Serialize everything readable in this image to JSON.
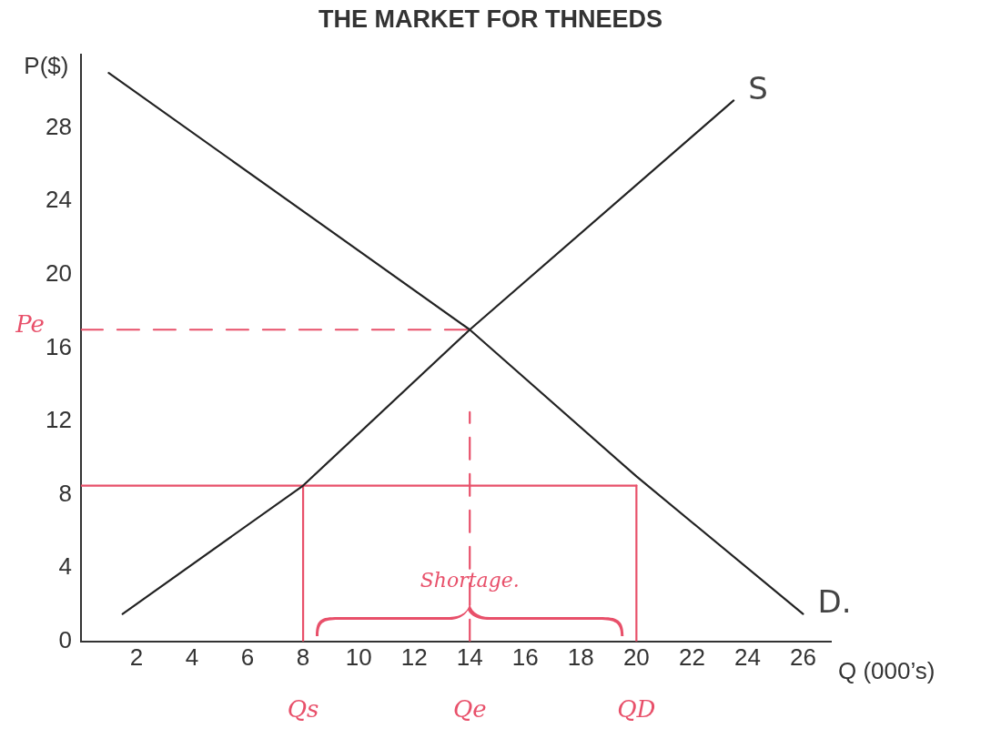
{
  "chart_data": {
    "type": "line",
    "title": "THE MARKET FOR THNEEDS",
    "xlabel": "Q (000’s)",
    "ylabel": "P($)",
    "xlim": [
      0,
      27
    ],
    "xticks": [
      2,
      4,
      6,
      8,
      10,
      12,
      14,
      16,
      18,
      20,
      22,
      24,
      26
    ],
    "ylim": [
      0,
      32
    ],
    "yticks": [
      0,
      4,
      8,
      12,
      16,
      20,
      24,
      28
    ],
    "grid": false,
    "legend": false,
    "marker": "none",
    "series": [
      {
        "name": "S",
        "color": "#222222",
        "x": [
          1.5,
          8,
          14,
          23.5
        ],
        "values": [
          1.5,
          8.5,
          17,
          29.5
        ]
      },
      {
        "name": "D.",
        "color": "#222222",
        "x": [
          1,
          14,
          20,
          26
        ],
        "values": [
          31,
          17,
          9,
          1.5
        ]
      },
      {
        "color": "#e8506a",
        "x": [
          0,
          20
        ],
        "values": [
          8.5,
          8.5
        ]
      },
      {
        "name": "Qs",
        "color": "#e8506a",
        "x": [
          8,
          8
        ],
        "values": [
          0,
          8.5
        ]
      },
      {
        "name": "QD",
        "color": "#e8506a",
        "x": [
          20,
          20
        ],
        "values": [
          0,
          8.5
        ]
      },
      {
        "name": "Pe",
        "color": "#e8506a",
        "x": [
          0,
          14
        ],
        "values": [
          17,
          17
        ],
        "line_style": "dashed"
      },
      {
        "name": "Qe",
        "color": "#e8506a",
        "x": [
          14,
          14
        ],
        "values": [
          0,
          12.5
        ],
        "line_style": "dashed"
      }
    ],
    "annotations": [
      "Shortage."
    ]
  }
}
